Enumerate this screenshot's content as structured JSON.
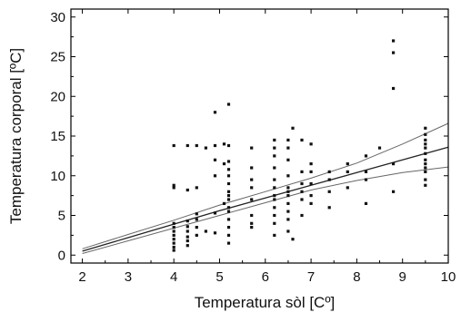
{
  "chart_data": {
    "type": "scatter",
    "title": "",
    "xlabel": "Temperatura sòl [Cº]",
    "ylabel": "Temperatura corporal [ºC]",
    "xlim": [
      1.75,
      10
    ],
    "ylim": [
      -1,
      31
    ],
    "xticks": [
      2,
      3,
      4,
      5,
      6,
      7,
      8,
      9,
      10
    ],
    "yticks": [
      0,
      5,
      10,
      15,
      20,
      25,
      30
    ],
    "grid": false,
    "points": [
      [
        4.0,
        0.6
      ],
      [
        4.0,
        1.0
      ],
      [
        4.0,
        1.5
      ],
      [
        4.0,
        2.0
      ],
      [
        4.0,
        2.5
      ],
      [
        4.0,
        3.0
      ],
      [
        4.0,
        3.5
      ],
      [
        4.0,
        4.0
      ],
      [
        4.0,
        8.5
      ],
      [
        4.0,
        8.8
      ],
      [
        4.0,
        13.8
      ],
      [
        4.3,
        1.2
      ],
      [
        4.3,
        1.8
      ],
      [
        4.3,
        2.3
      ],
      [
        4.3,
        3.0
      ],
      [
        4.3,
        3.6
      ],
      [
        4.3,
        4.3
      ],
      [
        4.3,
        8.2
      ],
      [
        4.3,
        13.8
      ],
      [
        4.5,
        2.5
      ],
      [
        4.5,
        3.5
      ],
      [
        4.5,
        4.5
      ],
      [
        4.5,
        5.2
      ],
      [
        4.5,
        8.5
      ],
      [
        4.5,
        13.8
      ],
      [
        4.7,
        3.0
      ],
      [
        4.7,
        13.5
      ],
      [
        4.9,
        2.8
      ],
      [
        4.9,
        5.3
      ],
      [
        4.9,
        10.0
      ],
      [
        4.9,
        12.0
      ],
      [
        4.9,
        13.8
      ],
      [
        4.9,
        18.0
      ],
      [
        5.1,
        6.5
      ],
      [
        5.1,
        11.5
      ],
      [
        5.1,
        14.0
      ],
      [
        5.2,
        1.5
      ],
      [
        5.2,
        2.5
      ],
      [
        5.2,
        3.5
      ],
      [
        5.2,
        4.5
      ],
      [
        5.2,
        5.5
      ],
      [
        5.2,
        6.0
      ],
      [
        5.2,
        7.0
      ],
      [
        5.2,
        7.5
      ],
      [
        5.2,
        8.0
      ],
      [
        5.2,
        9.0
      ],
      [
        5.2,
        10.0
      ],
      [
        5.2,
        10.8
      ],
      [
        5.2,
        11.8
      ],
      [
        5.2,
        13.8
      ],
      [
        5.2,
        19.0
      ],
      [
        5.7,
        3.5
      ],
      [
        5.7,
        4.0
      ],
      [
        5.7,
        5.0
      ],
      [
        5.7,
        7.0
      ],
      [
        5.7,
        8.5
      ],
      [
        5.7,
        9.5
      ],
      [
        5.7,
        11.0
      ],
      [
        5.7,
        13.5
      ],
      [
        6.2,
        2.5
      ],
      [
        6.2,
        4.0
      ],
      [
        6.2,
        5.0
      ],
      [
        6.2,
        6.0
      ],
      [
        6.2,
        7.0
      ],
      [
        6.2,
        7.5
      ],
      [
        6.2,
        8.5
      ],
      [
        6.2,
        9.5
      ],
      [
        6.2,
        11.0
      ],
      [
        6.2,
        12.5
      ],
      [
        6.2,
        13.5
      ],
      [
        6.2,
        14.5
      ],
      [
        6.5,
        3.0
      ],
      [
        6.5,
        4.5
      ],
      [
        6.5,
        5.5
      ],
      [
        6.5,
        6.5
      ],
      [
        6.5,
        7.5
      ],
      [
        6.5,
        8.0
      ],
      [
        6.5,
        8.5
      ],
      [
        6.5,
        10.0
      ],
      [
        6.5,
        12.0
      ],
      [
        6.5,
        13.5
      ],
      [
        6.5,
        14.5
      ],
      [
        6.6,
        2.0
      ],
      [
        6.6,
        16.0
      ],
      [
        6.8,
        5.0
      ],
      [
        6.8,
        7.0
      ],
      [
        6.8,
        8.0
      ],
      [
        6.8,
        9.0
      ],
      [
        6.8,
        10.5
      ],
      [
        6.8,
        14.5
      ],
      [
        7.0,
        6.5
      ],
      [
        7.0,
        7.5
      ],
      [
        7.0,
        9.0
      ],
      [
        7.0,
        10.5
      ],
      [
        7.0,
        11.5
      ],
      [
        7.0,
        14.0
      ],
      [
        7.4,
        6.0
      ],
      [
        7.4,
        8.0
      ],
      [
        7.4,
        9.5
      ],
      [
        7.4,
        10.5
      ],
      [
        7.8,
        8.5
      ],
      [
        7.8,
        10.5
      ],
      [
        7.8,
        11.5
      ],
      [
        8.2,
        6.5
      ],
      [
        8.2,
        9.5
      ],
      [
        8.2,
        10.5
      ],
      [
        8.2,
        12.5
      ],
      [
        8.5,
        13.5
      ],
      [
        8.8,
        8.0
      ],
      [
        8.8,
        11.5
      ],
      [
        8.8,
        21.0
      ],
      [
        8.8,
        25.5
      ],
      [
        8.8,
        27.0
      ],
      [
        9.5,
        8.8
      ],
      [
        9.5,
        9.5
      ],
      [
        9.5,
        10.5
      ],
      [
        9.5,
        11.0
      ],
      [
        9.5,
        11.5
      ],
      [
        9.5,
        12.0
      ],
      [
        9.5,
        12.8
      ],
      [
        9.5,
        13.5
      ],
      [
        9.5,
        14.0
      ],
      [
        9.5,
        14.5
      ],
      [
        9.5,
        15.2
      ],
      [
        9.5,
        16.0
      ]
    ],
    "fit_lines": [
      {
        "x": [
          2.0,
          3.0,
          4.0,
          5.0,
          6.0,
          7.0,
          8.0,
          9.0,
          10.0
        ],
        "y": [
          0.5,
          2.2,
          3.9,
          5.6,
          7.2,
          8.8,
          10.4,
          12.0,
          13.6
        ]
      },
      {
        "x": [
          2.0,
          3.0,
          4.0,
          5.0,
          6.0,
          7.0,
          8.0,
          9.0,
          10.0
        ],
        "y": [
          0.8,
          2.6,
          4.4,
          6.3,
          8.0,
          9.7,
          11.6,
          14.0,
          16.6
        ]
      },
      {
        "x": [
          2.0,
          3.0,
          4.0,
          5.0,
          6.0,
          7.0,
          8.0,
          9.0,
          10.0
        ],
        "y": [
          0.2,
          1.8,
          3.4,
          5.0,
          6.6,
          8.2,
          9.4,
          10.4,
          11.1
        ]
      }
    ]
  }
}
